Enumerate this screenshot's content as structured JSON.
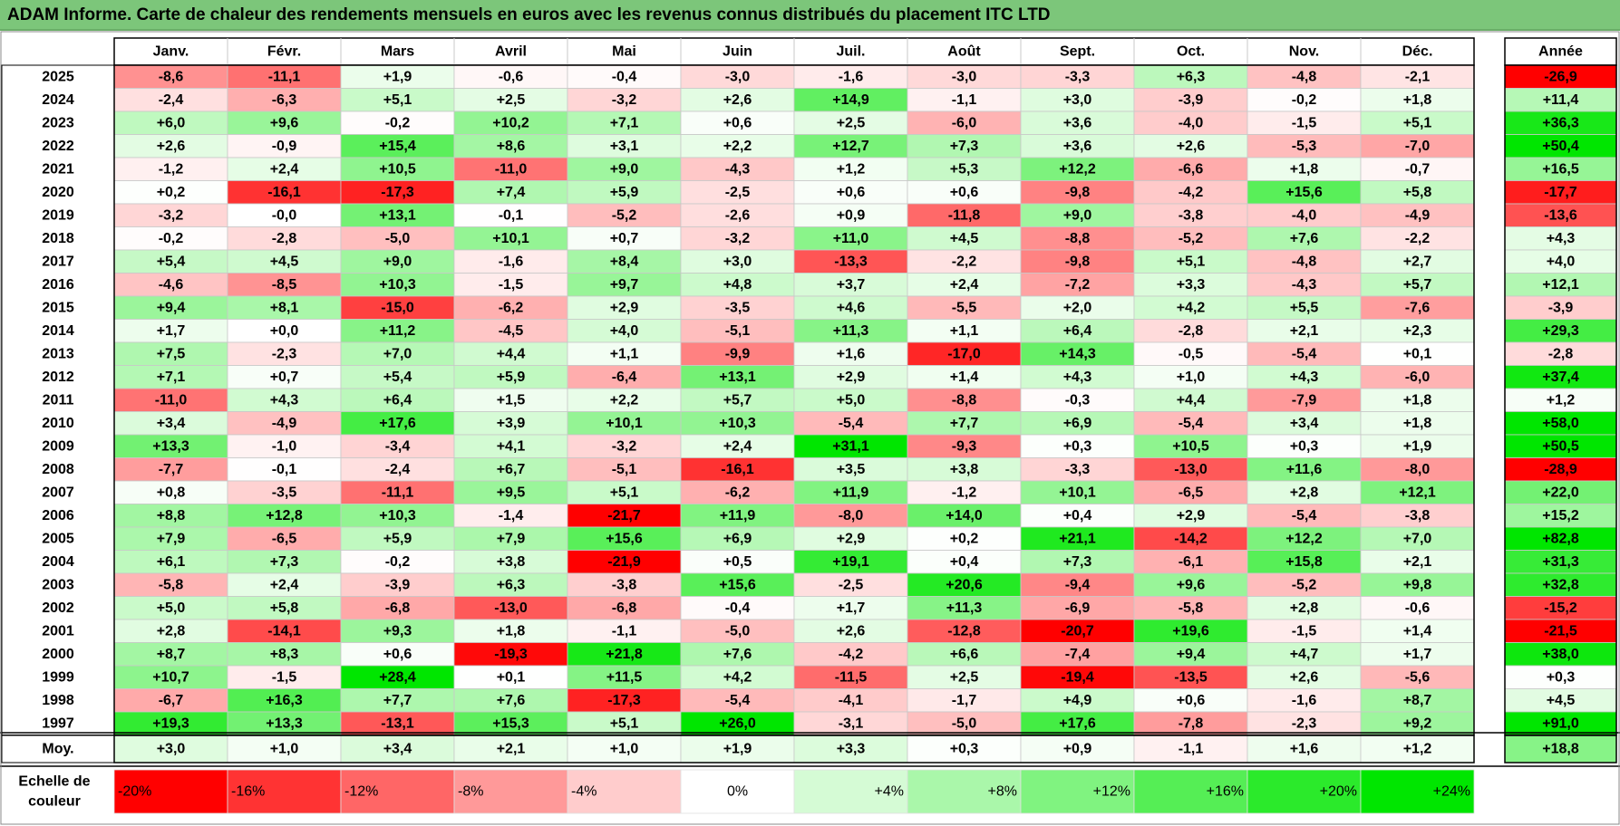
{
  "chart_data": {
    "type": "heatmap",
    "title": "ADAM Informe. Carte de chaleur des rendements mensuels en euros avec les revenus connus distribués du placement ITC LTD",
    "months": [
      "Janv.",
      "Févr.",
      "Mars",
      "Avril",
      "Mai",
      "Juin",
      "Juil.",
      "Août",
      "Sept.",
      "Oct.",
      "Nov.",
      "Déc."
    ],
    "year_header": "Année",
    "rows": [
      {
        "year": "2025",
        "values": [
          -8.6,
          -11.1,
          1.9,
          -0.6,
          -0.4,
          -3.0,
          -1.6,
          -3.0,
          -3.3,
          6.3,
          -4.8,
          -2.1
        ],
        "annual": -26.9
      },
      {
        "year": "2024",
        "values": [
          -2.4,
          -6.3,
          5.1,
          2.5,
          -3.2,
          2.6,
          14.9,
          -1.1,
          3.0,
          -3.9,
          -0.2,
          1.8
        ],
        "annual": 11.4
      },
      {
        "year": "2023",
        "values": [
          6.0,
          9.6,
          -0.2,
          10.2,
          7.1,
          0.6,
          2.5,
          -6.0,
          3.6,
          -4.0,
          -1.5,
          5.1
        ],
        "annual": 36.3
      },
      {
        "year": "2022",
        "values": [
          2.6,
          -0.9,
          15.4,
          8.6,
          3.1,
          2.2,
          12.7,
          7.3,
          3.6,
          2.6,
          -5.3,
          -7.0
        ],
        "annual": 50.4
      },
      {
        "year": "2021",
        "values": [
          -1.2,
          2.4,
          10.5,
          -11.0,
          9.0,
          -4.3,
          1.2,
          5.3,
          12.2,
          -6.6,
          1.8,
          -0.7
        ],
        "annual": 16.5
      },
      {
        "year": "2020",
        "values": [
          0.2,
          -16.1,
          -17.3,
          7.4,
          5.9,
          -2.5,
          0.6,
          0.6,
          -9.8,
          -4.2,
          15.6,
          5.8
        ],
        "annual": -17.7
      },
      {
        "year": "2019",
        "values": [
          -3.2,
          -0.0,
          13.1,
          -0.1,
          -5.2,
          -2.6,
          0.9,
          -11.8,
          9.0,
          -3.8,
          -4.0,
          -4.9
        ],
        "annual": -13.6
      },
      {
        "year": "2018",
        "values": [
          -0.2,
          -2.8,
          -5.0,
          10.1,
          0.7,
          -3.2,
          11.0,
          4.5,
          -8.8,
          -5.2,
          7.6,
          -2.2
        ],
        "annual": 4.3
      },
      {
        "year": "2017",
        "values": [
          5.4,
          4.5,
          9.0,
          -1.6,
          8.4,
          3.0,
          -13.3,
          -2.2,
          -9.8,
          5.1,
          -4.8,
          2.7
        ],
        "annual": 4.0
      },
      {
        "year": "2016",
        "values": [
          -4.6,
          -8.5,
          10.3,
          -1.5,
          9.7,
          4.8,
          3.7,
          2.4,
          -7.2,
          3.3,
          -4.3,
          5.7
        ],
        "annual": 12.1
      },
      {
        "year": "2015",
        "values": [
          9.4,
          8.1,
          -15.0,
          -6.2,
          2.9,
          -3.5,
          4.6,
          -5.5,
          2.0,
          4.2,
          5.5,
          -7.6
        ],
        "annual": -3.9
      },
      {
        "year": "2014",
        "values": [
          1.7,
          0.0,
          11.2,
          -4.5,
          4.0,
          -5.1,
          11.3,
          1.1,
          6.4,
          -2.8,
          2.1,
          2.3
        ],
        "annual": 29.3
      },
      {
        "year": "2013",
        "values": [
          7.5,
          -2.3,
          7.0,
          4.4,
          1.1,
          -9.9,
          1.6,
          -17.0,
          14.3,
          -0.5,
          -5.4,
          0.1
        ],
        "annual": -2.8
      },
      {
        "year": "2012",
        "values": [
          7.1,
          0.7,
          5.4,
          5.9,
          -6.4,
          13.1,
          2.9,
          1.4,
          4.3,
          1.0,
          4.3,
          -6.0
        ],
        "annual": 37.4
      },
      {
        "year": "2011",
        "values": [
          -11.0,
          4.3,
          6.4,
          1.5,
          2.2,
          5.7,
          5.0,
          -8.8,
          -0.3,
          4.4,
          -7.9,
          1.8
        ],
        "annual": 1.2
      },
      {
        "year": "2010",
        "values": [
          3.4,
          -4.9,
          17.6,
          3.9,
          10.1,
          10.3,
          -5.4,
          7.7,
          6.9,
          -5.4,
          3.4,
          1.8
        ],
        "annual": 58.0
      },
      {
        "year": "2009",
        "values": [
          13.3,
          -1.0,
          -3.4,
          4.1,
          -3.2,
          2.4,
          31.1,
          -9.3,
          0.3,
          10.5,
          0.3,
          1.9
        ],
        "annual": 50.5
      },
      {
        "year": "2008",
        "values": [
          -7.7,
          -0.1,
          -2.4,
          6.7,
          -5.1,
          -16.1,
          3.5,
          3.8,
          -3.3,
          -13.0,
          11.6,
          -8.0
        ],
        "annual": -28.9
      },
      {
        "year": "2007",
        "values": [
          0.8,
          -3.5,
          -11.1,
          9.5,
          5.1,
          -6.2,
          11.9,
          -1.2,
          10.1,
          -6.5,
          2.8,
          12.1
        ],
        "annual": 22.0
      },
      {
        "year": "2006",
        "values": [
          8.8,
          12.8,
          10.3,
          -1.4,
          -21.7,
          11.9,
          -8.0,
          14.0,
          0.4,
          2.9,
          -5.4,
          -3.8
        ],
        "annual": 15.2
      },
      {
        "year": "2005",
        "values": [
          7.9,
          -6.5,
          5.9,
          7.9,
          15.6,
          6.9,
          2.9,
          0.2,
          21.1,
          -14.2,
          12.2,
          7.0
        ],
        "annual": 82.8
      },
      {
        "year": "2004",
        "values": [
          6.1,
          7.3,
          -0.2,
          3.8,
          -21.9,
          0.5,
          19.1,
          0.4,
          7.3,
          -6.1,
          15.8,
          2.1
        ],
        "annual": 31.3
      },
      {
        "year": "2003",
        "values": [
          -5.8,
          2.4,
          -3.9,
          6.3,
          -3.8,
          15.6,
          -2.5,
          20.6,
          -9.4,
          9.6,
          -5.2,
          9.8
        ],
        "annual": 32.8
      },
      {
        "year": "2002",
        "values": [
          5.0,
          5.8,
          -6.8,
          -13.0,
          -6.8,
          -0.4,
          1.7,
          11.3,
          -6.9,
          -5.8,
          2.8,
          -0.6
        ],
        "annual": -15.2
      },
      {
        "year": "2001",
        "values": [
          2.8,
          -14.1,
          9.3,
          1.8,
          -1.1,
          -5.0,
          2.6,
          -12.8,
          -20.7,
          19.6,
          -1.5,
          1.4
        ],
        "annual": -21.5
      },
      {
        "year": "2000",
        "values": [
          8.7,
          8.3,
          0.6,
          -19.3,
          21.8,
          7.6,
          -4.2,
          6.6,
          -7.4,
          9.4,
          4.7,
          1.7
        ],
        "annual": 38.0
      },
      {
        "year": "1999",
        "values": [
          10.7,
          -1.5,
          28.4,
          0.1,
          11.5,
          4.2,
          -11.5,
          2.5,
          -19.4,
          -13.5,
          2.6,
          -5.6
        ],
        "annual": 0.3
      },
      {
        "year": "1998",
        "values": [
          -6.7,
          16.3,
          7.7,
          7.6,
          -17.3,
          -5.4,
          -4.1,
          -1.7,
          4.9,
          0.6,
          -1.6,
          8.7
        ],
        "annual": 4.5
      },
      {
        "year": "1997",
        "values": [
          19.3,
          13.3,
          -13.1,
          15.3,
          5.1,
          26.0,
          -3.1,
          -5.0,
          17.6,
          -7.8,
          -2.3,
          9.2
        ],
        "annual": 91.0
      }
    ],
    "average_label": "Moy.",
    "average_values": [
      3.0,
      1.0,
      3.4,
      2.1,
      1.0,
      1.9,
      3.3,
      0.3,
      0.9,
      -1.1,
      1.6,
      1.2
    ],
    "average_annual": 18.8,
    "legend": {
      "title_line1": "Echelle de",
      "title_line2": "couleur",
      "steps": [
        -20,
        -16,
        -12,
        -8,
        -4,
        0,
        4,
        8,
        12,
        16,
        20,
        24
      ],
      "labels": [
        "-20%",
        "-16%",
        "-12%",
        "-8%",
        "-4%",
        "0%",
        "+4%",
        "+8%",
        "+12%",
        "+16%",
        "+20%",
        "+24%"
      ]
    },
    "colors": {
      "neg_max": "#ff0000",
      "neutral": "#ffffff",
      "pos_max": "#00e600",
      "title_bg": "#7cc67a",
      "grid": "#c8c8c8",
      "border": "#000000"
    }
  }
}
